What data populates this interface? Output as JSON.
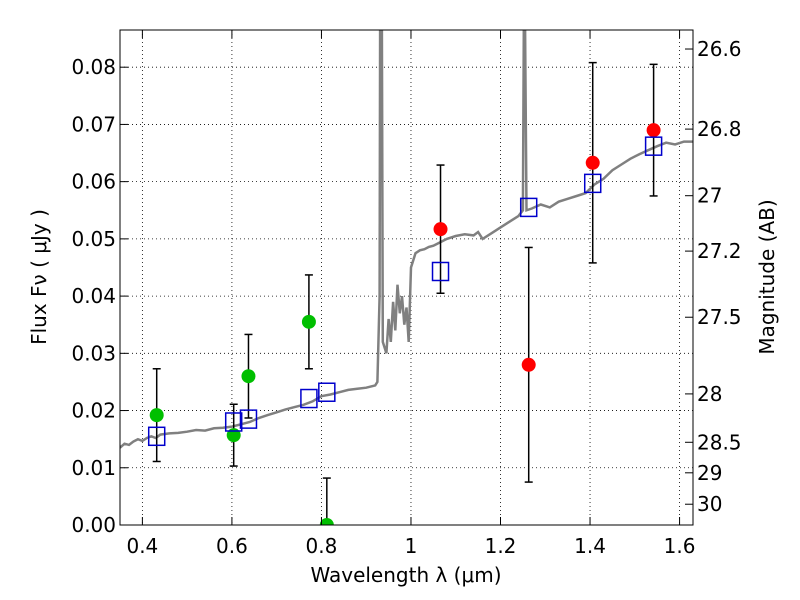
{
  "chart_data": {
    "type": "scatter",
    "xlabel": "Wavelength  λ (μm)",
    "ylabel": "Flux  Fν  ( μJy )",
    "ylabel_right": "Magnitude (AB)",
    "xlim": [
      0.35,
      1.63
    ],
    "ylim": [
      0.0,
      0.0865
    ],
    "grid": true,
    "x_ticks": [
      {
        "value": 0.4,
        "label": "0.4"
      },
      {
        "value": 0.6,
        "label": "0.6"
      },
      {
        "value": 0.8,
        "label": "0.8"
      },
      {
        "value": 1.0,
        "label": "1"
      },
      {
        "value": 1.2,
        "label": "1.2"
      },
      {
        "value": 1.4,
        "label": "1.4"
      },
      {
        "value": 1.6,
        "label": "1.6"
      }
    ],
    "y_ticks": [
      {
        "value": 0.0,
        "label": "0.00"
      },
      {
        "value": 0.01,
        "label": "0.01"
      },
      {
        "value": 0.02,
        "label": "0.02"
      },
      {
        "value": 0.03,
        "label": "0.03"
      },
      {
        "value": 0.04,
        "label": "0.04"
      },
      {
        "value": 0.05,
        "label": "0.05"
      },
      {
        "value": 0.06,
        "label": "0.06"
      },
      {
        "value": 0.07,
        "label": "0.07"
      },
      {
        "value": 0.08,
        "label": "0.08"
      }
    ],
    "mag_ticks": [
      {
        "mag": 26.6,
        "label": "26.6"
      },
      {
        "mag": 26.8,
        "label": "26.8"
      },
      {
        "mag": 27.0,
        "label": "27"
      },
      {
        "mag": 27.2,
        "label": "27.2"
      },
      {
        "mag": 27.5,
        "label": "27.5"
      },
      {
        "mag": 28.0,
        "label": "28"
      },
      {
        "mag": 28.5,
        "label": "28.5"
      },
      {
        "mag": 29.0,
        "label": "29"
      },
      {
        "mag": 30.0,
        "label": "30"
      }
    ],
    "series": [
      {
        "kind": "line",
        "color": "#808080",
        "points": [
          [
            0.35,
            0.0135
          ],
          [
            0.36,
            0.0142
          ],
          [
            0.37,
            0.014
          ],
          [
            0.38,
            0.0146
          ],
          [
            0.39,
            0.015
          ],
          [
            0.4,
            0.0147
          ],
          [
            0.41,
            0.0152
          ],
          [
            0.42,
            0.0155
          ],
          [
            0.43,
            0.0152
          ],
          [
            0.44,
            0.0158
          ],
          [
            0.46,
            0.016
          ],
          [
            0.48,
            0.0161
          ],
          [
            0.5,
            0.0163
          ],
          [
            0.52,
            0.0166
          ],
          [
            0.54,
            0.0165
          ],
          [
            0.56,
            0.0169
          ],
          [
            0.58,
            0.017
          ],
          [
            0.6,
            0.0172
          ],
          [
            0.62,
            0.0176
          ],
          [
            0.64,
            0.018
          ],
          [
            0.66,
            0.0187
          ],
          [
            0.68,
            0.0192
          ],
          [
            0.7,
            0.0197
          ],
          [
            0.72,
            0.0202
          ],
          [
            0.74,
            0.0206
          ],
          [
            0.76,
            0.021
          ],
          [
            0.78,
            0.0216
          ],
          [
            0.8,
            0.0225
          ],
          [
            0.82,
            0.0228
          ],
          [
            0.84,
            0.0232
          ],
          [
            0.86,
            0.0236
          ],
          [
            0.88,
            0.0238
          ],
          [
            0.9,
            0.024
          ],
          [
            0.92,
            0.0244
          ],
          [
            0.925,
            0.025
          ],
          [
            0.93,
            0.04
          ],
          [
            0.931,
            0.0865
          ],
          [
            0.935,
            0.0865
          ],
          [
            0.937,
            0.032
          ],
          [
            0.945,
            0.03
          ],
          [
            0.95,
            0.036
          ],
          [
            0.955,
            0.032
          ],
          [
            0.96,
            0.039
          ],
          [
            0.965,
            0.034
          ],
          [
            0.97,
            0.042
          ],
          [
            0.975,
            0.037
          ],
          [
            0.98,
            0.04
          ],
          [
            0.985,
            0.035
          ],
          [
            0.99,
            0.038
          ],
          [
            0.995,
            0.032
          ],
          [
            1.0,
            0.045
          ],
          [
            1.01,
            0.0475
          ],
          [
            1.02,
            0.048
          ],
          [
            1.03,
            0.0482
          ],
          [
            1.04,
            0.0486
          ],
          [
            1.05,
            0.0488
          ],
          [
            1.06,
            0.0492
          ],
          [
            1.08,
            0.05
          ],
          [
            1.1,
            0.0505
          ],
          [
            1.12,
            0.0508
          ],
          [
            1.14,
            0.0506
          ],
          [
            1.15,
            0.0512
          ],
          [
            1.16,
            0.05
          ],
          [
            1.18,
            0.051
          ],
          [
            1.2,
            0.052
          ],
          [
            1.22,
            0.053
          ],
          [
            1.24,
            0.054
          ],
          [
            1.25,
            0.055
          ],
          [
            1.252,
            0.0865
          ],
          [
            1.255,
            0.0865
          ],
          [
            1.258,
            0.055
          ],
          [
            1.27,
            0.0553
          ],
          [
            1.29,
            0.056
          ],
          [
            1.31,
            0.0555
          ],
          [
            1.33,
            0.0565
          ],
          [
            1.35,
            0.057
          ],
          [
            1.37,
            0.0575
          ],
          [
            1.39,
            0.058
          ],
          [
            1.41,
            0.0595
          ],
          [
            1.43,
            0.0605
          ],
          [
            1.45,
            0.062
          ],
          [
            1.47,
            0.063
          ],
          [
            1.49,
            0.064
          ],
          [
            1.51,
            0.0648
          ],
          [
            1.53,
            0.0655
          ],
          [
            1.55,
            0.0662
          ],
          [
            1.57,
            0.0668
          ],
          [
            1.59,
            0.0665
          ],
          [
            1.61,
            0.067
          ],
          [
            1.63,
            0.067
          ]
        ]
      },
      {
        "kind": "errorbar",
        "marker": "circle",
        "color": "#00bf00",
        "points": [
          {
            "x": 0.432,
            "y": 0.0192,
            "err": 0.0081
          },
          {
            "x": 0.604,
            "y": 0.0157,
            "err": 0.0054
          },
          {
            "x": 0.637,
            "y": 0.026,
            "err": 0.0073
          },
          {
            "x": 0.772,
            "y": 0.0355,
            "err": 0.0082
          },
          {
            "x": 0.812,
            "y": 0.0,
            "err": 0.0082
          }
        ]
      },
      {
        "kind": "errorbar",
        "marker": "circle",
        "color": "#ff0000",
        "points": [
          {
            "x": 1.066,
            "y": 0.0517,
            "err": 0.0112
          },
          {
            "x": 1.263,
            "y": 0.028,
            "err": 0.0205
          },
          {
            "x": 1.406,
            "y": 0.0633,
            "err": 0.0175
          },
          {
            "x": 1.542,
            "y": 0.069,
            "err": 0.0115
          }
        ]
      },
      {
        "kind": "scatter",
        "marker": "open-square",
        "color": "#0000cc",
        "points": [
          {
            "x": 0.432,
            "y": 0.0155
          },
          {
            "x": 0.604,
            "y": 0.018
          },
          {
            "x": 0.637,
            "y": 0.0185
          },
          {
            "x": 0.772,
            "y": 0.0221
          },
          {
            "x": 0.812,
            "y": 0.0232
          },
          {
            "x": 1.066,
            "y": 0.0443
          },
          {
            "x": 1.263,
            "y": 0.0555
          },
          {
            "x": 1.406,
            "y": 0.0597
          },
          {
            "x": 1.542,
            "y": 0.0662
          }
        ]
      }
    ]
  }
}
